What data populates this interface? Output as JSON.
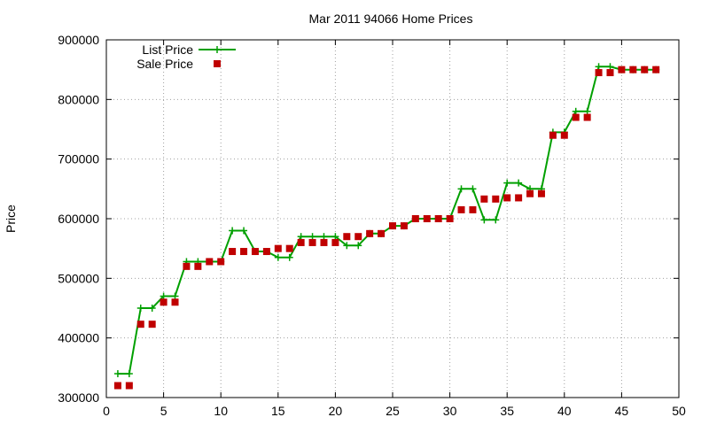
{
  "chart_data": {
    "type": "line",
    "title": "Mar 2011 94066 Home Prices",
    "xlabel": "",
    "ylabel": "Price",
    "xlim": [
      0,
      50
    ],
    "ylim": [
      300000,
      900000
    ],
    "xticks": [
      0,
      5,
      10,
      15,
      20,
      25,
      30,
      35,
      40,
      45,
      50
    ],
    "yticks": [
      300000,
      400000,
      500000,
      600000,
      700000,
      800000,
      900000
    ],
    "grid": true,
    "legend_position": "top-left",
    "series": [
      {
        "name": "List Price",
        "style": "line+cross",
        "color": "#00a000",
        "x": [
          1,
          2,
          3,
          4,
          5,
          6,
          7,
          8,
          9,
          10,
          11,
          12,
          13,
          14,
          15,
          16,
          17,
          18,
          19,
          20,
          21,
          22,
          23,
          24,
          25,
          26,
          27,
          28,
          29,
          30,
          31,
          32,
          33,
          34,
          35,
          36,
          37,
          38,
          39,
          40,
          41,
          42,
          43,
          44,
          45,
          46,
          47,
          48
        ],
        "y": [
          340000,
          340000,
          450000,
          450000,
          470000,
          470000,
          528000,
          528000,
          528000,
          528000,
          580000,
          580000,
          545000,
          545000,
          535000,
          535000,
          570000,
          570000,
          570000,
          570000,
          555000,
          555000,
          575000,
          575000,
          588000,
          588000,
          600000,
          600000,
          600000,
          600000,
          650000,
          650000,
          598000,
          598000,
          660000,
          660000,
          650000,
          650000,
          745000,
          745000,
          780000,
          780000,
          855000,
          855000,
          850000,
          850000,
          850000,
          850000
        ]
      },
      {
        "name": "Sale Price",
        "style": "square",
        "color": "#c00000",
        "x": [
          1,
          2,
          3,
          4,
          5,
          6,
          7,
          8,
          9,
          10,
          11,
          12,
          13,
          14,
          15,
          16,
          17,
          18,
          19,
          20,
          21,
          22,
          23,
          24,
          25,
          26,
          27,
          28,
          29,
          30,
          31,
          32,
          33,
          34,
          35,
          36,
          37,
          38,
          39,
          40,
          41,
          42,
          43,
          44,
          45,
          46,
          47,
          48
        ],
        "y": [
          320000,
          320000,
          423000,
          423000,
          460000,
          460000,
          520000,
          520000,
          528000,
          528000,
          545000,
          545000,
          545000,
          545000,
          550000,
          550000,
          560000,
          560000,
          560000,
          560000,
          570000,
          570000,
          575000,
          575000,
          588000,
          588000,
          600000,
          600000,
          600000,
          600000,
          615000,
          615000,
          633000,
          633000,
          635000,
          635000,
          642000,
          642000,
          740000,
          740000,
          770000,
          770000,
          845000,
          845000,
          850000,
          850000,
          850000,
          850000
        ]
      }
    ]
  }
}
